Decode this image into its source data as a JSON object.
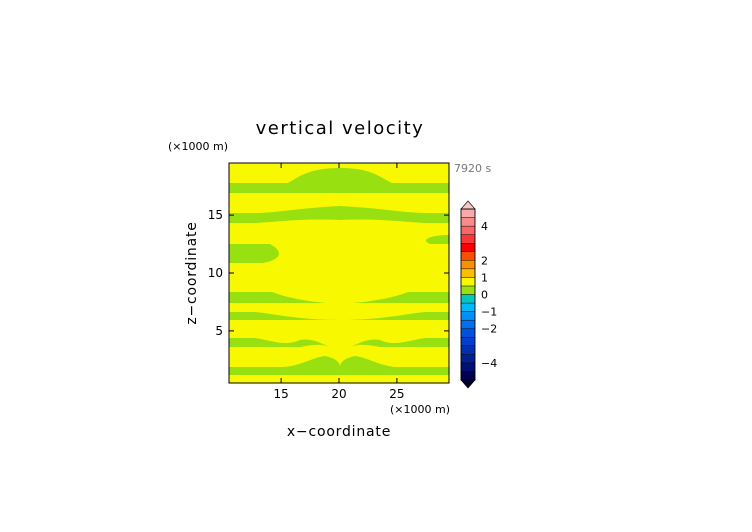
{
  "chart_data": {
    "type": "heatmap",
    "title": "vertical velocity",
    "xlabel": "x−coordinate",
    "ylabel": "z−coordinate",
    "x_unit": "(×1000 m)",
    "y_unit": "(×1000 m)",
    "time_label": "7920 s",
    "xlim": [
      10.5,
      29.5
    ],
    "ylim": [
      0.5,
      19.5
    ],
    "x_ticks": [
      15,
      20,
      25
    ],
    "x_tick_labels": [
      "15",
      "20",
      "25"
    ],
    "y_ticks": [
      5,
      10,
      15
    ],
    "y_tick_labels": [
      "5",
      "10",
      "15"
    ],
    "colorbar": {
      "levels": [
        -5,
        -4.5,
        -4,
        -3.5,
        -3,
        -2.5,
        -2,
        -1.5,
        -1,
        -0.5,
        0,
        0.5,
        1,
        1.5,
        2,
        2.5,
        3,
        3.5,
        4,
        4.5,
        5
      ],
      "tick_values": [
        -4,
        -2,
        -1,
        0,
        1,
        2,
        4
      ],
      "tick_labels": [
        "−4",
        "−2",
        "−1",
        "0",
        "1",
        "2",
        "4"
      ],
      "colors": [
        "#000050",
        "#001070",
        "#002090",
        "#0030b0",
        "#0040d0",
        "#0050e0",
        "#0070f0",
        "#0090f8",
        "#00b8f8",
        "#00c8c0",
        "#99e010",
        "#f8f800",
        "#f8c000",
        "#f89000",
        "#f85000",
        "#f80000",
        "#f83838",
        "#f86868",
        "#f88c8c",
        "#f8aaaa"
      ],
      "extend": "both"
    },
    "field_levels": [
      0,
      0.5
    ],
    "field_colors": [
      "#99e010",
      "#f8f800"
    ],
    "field_description_regions": [
      {
        "range_x": [
          10.5,
          29.5
        ],
        "range_z": [
          0.5,
          19.5
        ],
        "value": 0.25
      }
    ]
  }
}
